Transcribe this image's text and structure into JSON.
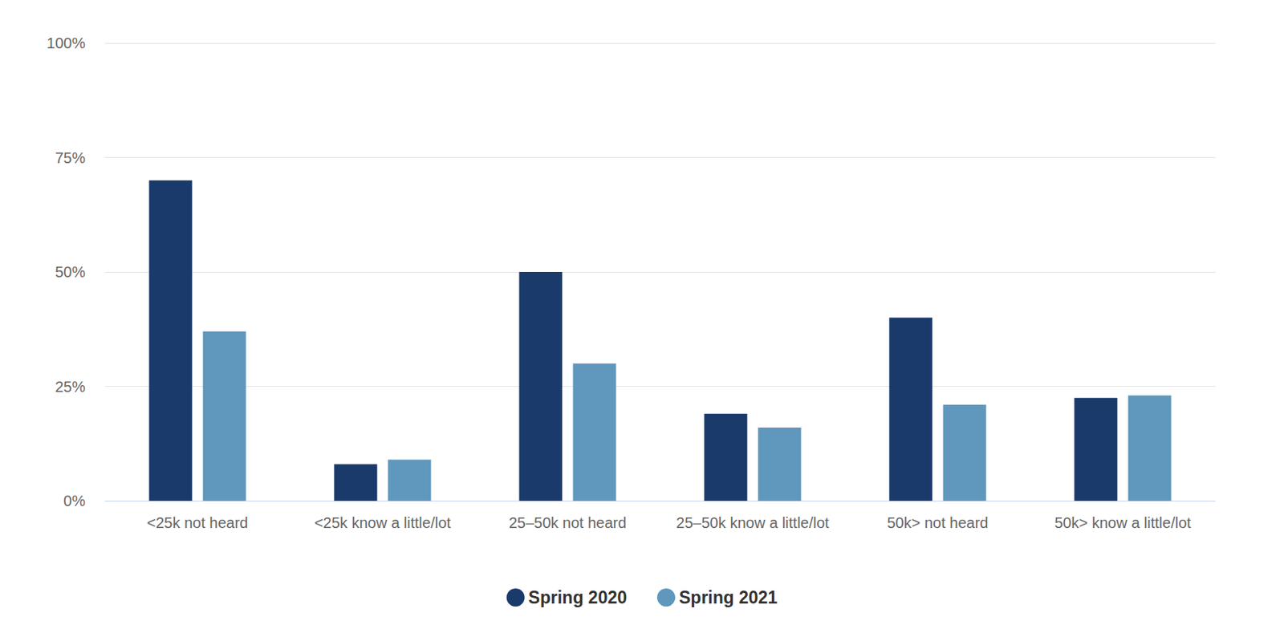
{
  "chart_data": {
    "type": "bar",
    "categories": [
      "<25k not heard",
      "<25k know a little/lot",
      "25–50k not heard",
      "25–50k know a little/lot",
      "50k> not heard",
      "50k> know a little/lot"
    ],
    "series": [
      {
        "name": "Spring 2020",
        "color": "#1a3a6b",
        "values": [
          70,
          8,
          50,
          19,
          40,
          22.5
        ]
      },
      {
        "name": "Spring 2021",
        "color": "#5f97bd",
        "values": [
          37,
          9,
          30,
          16,
          21,
          23
        ]
      }
    ],
    "ylim": [
      0,
      100
    ],
    "yticks": [
      {
        "value": 0,
        "label": "0%"
      },
      {
        "value": 25,
        "label": "25%"
      },
      {
        "value": 50,
        "label": "50%"
      },
      {
        "value": 75,
        "label": "75%"
      },
      {
        "value": 100,
        "label": "100%"
      }
    ],
    "grid": true,
    "legend": "bottom"
  }
}
